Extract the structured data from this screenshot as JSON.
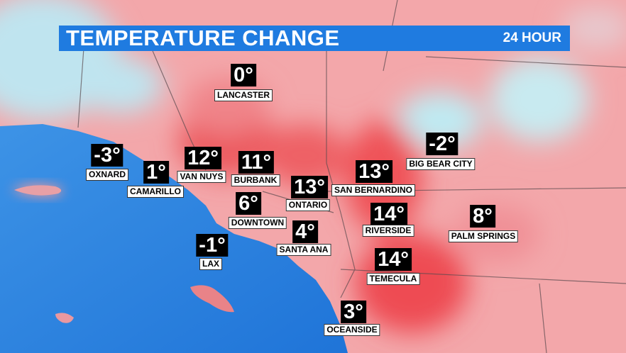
{
  "header": {
    "title": "TEMPERATURE CHANGE",
    "subtitle": "24 HOUR"
  },
  "cities": [
    {
      "name": "LANCASTER",
      "temp": "0°"
    },
    {
      "name": "OXNARD",
      "temp": "-3°"
    },
    {
      "name": "CAMARILLO",
      "temp": "1°"
    },
    {
      "name": "VAN NUYS",
      "temp": "12°"
    },
    {
      "name": "BURBANK",
      "temp": "11°"
    },
    {
      "name": "ONTARIO",
      "temp": "13°"
    },
    {
      "name": "SAN BERNARDINO",
      "temp": "13°"
    },
    {
      "name": "BIG BEAR CITY",
      "temp": "-2°"
    },
    {
      "name": "DOWNTOWN",
      "temp": "6°"
    },
    {
      "name": "RIVERSIDE",
      "temp": "14°"
    },
    {
      "name": "PALM SPRINGS",
      "temp": "8°"
    },
    {
      "name": "SANTA ANA",
      "temp": "4°"
    },
    {
      "name": "LAX",
      "temp": "-1°"
    },
    {
      "name": "TEMECULA",
      "temp": "14°"
    },
    {
      "name": "OCEANSIDE",
      "temp": "3°"
    }
  ]
}
